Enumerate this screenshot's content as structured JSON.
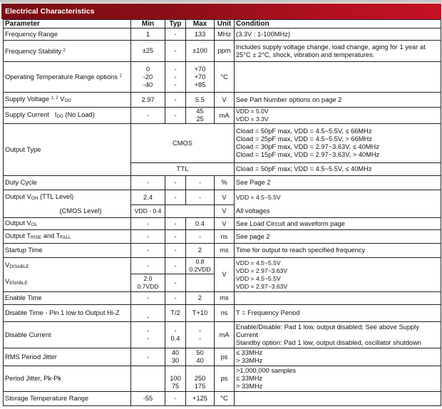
{
  "title": "Electrical Characteristics",
  "headers": {
    "parameter": "Parameter",
    "min": "Min",
    "typ": "Typ",
    "max": "Max",
    "unit": "Unit",
    "condition": "Condition"
  },
  "rows": {
    "freq_range": {
      "param": "Frequency Range",
      "min": "1",
      "typ": "-",
      "max": "133",
      "unit": "MHz",
      "cond": "(3.3V : 1-100MHz)"
    },
    "freq_stab": {
      "param": "Frequency Stability",
      "sup": "2",
      "min": "±25",
      "typ": "-",
      "max": "±100",
      "unit": "ppm",
      "cond": "Includes supply voltage change, load change, aging for 1 year at 25°C ± 2°C, shock, vibration and temperatures."
    },
    "op_temp": {
      "param": "Operating Temperature Range options",
      "sup": "2",
      "min": "0\n-20\n-40",
      "typ": "-\n-\n-",
      "max": "+70\n+70\n+85",
      "unit": "°C",
      "cond": ""
    },
    "supply_v": {
      "param": "Supply Voltage",
      "sup": "1, 2",
      "sym": "V",
      "sub": "DD",
      "min": "2.97",
      "typ": "-",
      "max": "5.5",
      "unit": "V",
      "cond": "See Part Number options on page 2"
    },
    "supply_i": {
      "param": "Supply Current",
      "sym": "I",
      "sub": "DD",
      "extra": "(No Load)",
      "min": "-",
      "typ": "-",
      "max": "45\n25",
      "unit": "mA",
      "cond": "VDD = 5.0V\nVDD = 3.3V"
    },
    "output_type": {
      "param": "Output Type",
      "cmos": "CMOS",
      "cmos_cond": "Cload = 50pF max, VDD = 4.5~5.5V, ≤ 66MHz\nCload = 25pF max, VDD = 4.5~5.5V, > 66MHz\nCload = 30pF max, VDD = 2.97~3.63V, ≤ 40MHz\nCload = 15pF max, VDD = 2.97~3.63V, > 40MHz",
      "ttl": "TTL",
      "ttl_cond": "Cload = 50pF max; VDD = 4.5~5.5V, ≤ 40MHz"
    },
    "duty": {
      "param": "Duty Cycle",
      "min": "-",
      "typ": "-",
      "max": "-",
      "unit": "%",
      "cond": "See Page 2"
    },
    "voh_ttl": {
      "param": "Output V",
      "sub": "OH",
      "extra": "(TTL Level)",
      "min": "2.4",
      "typ": "-",
      "max": "-",
      "unit": "V",
      "cond": "VDD = 4.5~5.5V"
    },
    "voh_cmos": {
      "param": "(CMOS Level)",
      "min": "VDD - 0.4",
      "unit": "V",
      "cond": "All voltages"
    },
    "vol": {
      "param": "Output V",
      "sub": "OL",
      "min": "-",
      "typ": "-",
      "max": "0.4",
      "unit": "V",
      "cond": "See Load Circuit and waveform page"
    },
    "trise": {
      "param": "Output T",
      "sub": "RISE",
      "mid": "and T",
      "sub2": "FALL",
      "min": "-",
      "typ": "-",
      "max": "-",
      "unit": "ns",
      "cond": "See page 2"
    },
    "startup": {
      "param": "Startup Time",
      "min": "-",
      "typ": "-",
      "max": "2",
      "unit": "ms",
      "cond": "Time for output to reach specified frequency"
    },
    "vdisable": {
      "param": "V",
      "sub": "DISABLE",
      "min": "-",
      "typ": "-",
      "max": "0.8\n0.2VDD",
      "unit": "V",
      "cond": "VDD = 4.5~5.5V\nVDD = 2.97~3.63V\nVDD = 4.5~5.5V\nVDD = 2.97~3.63V"
    },
    "venable": {
      "param": "V",
      "sub": "ENABLE",
      "min": "2.0\n0.7VDD",
      "typ": "-",
      "max": ""
    },
    "enable_time": {
      "param": "Enable Time",
      "min": "-",
      "typ": "-",
      "max": "2",
      "unit": "ms",
      "cond": ""
    },
    "disable_time": {
      "param": "Disable Time - Pin 1 low to Output Hi-Z",
      "min": "\n-",
      "typ": "T/2",
      "max": "T+10",
      "unit": "ns",
      "cond": "T = Frequency Period"
    },
    "disable_current": {
      "param": "Disable Current",
      "min": "-\n-",
      "typ": "-\n0.4",
      "max": "-\n-",
      "unit": "mA",
      "cond": "Enable/Disable: Pad 1 low, output disabled; See above Supply Current\nStandby option: Pad 1 low, output disabled, oscillator shutdown"
    },
    "rms_jitter": {
      "param": "RMS Period Jitter",
      "min": "-",
      "typ": "40\n30",
      "max": "50\n40",
      "unit": "ps",
      "cond": "≤ 33MHz\n> 33MHz"
    },
    "pk_jitter": {
      "param": "Period Jitter, Pk-Pk",
      "min": "",
      "typ": "\n100\n75",
      "max": "\n250\n175",
      "unit": "ps",
      "cond": ">1,000,000 samples\n≤ 33MHz\n> 33MHz"
    },
    "storage": {
      "param": "Storage Temperature Range",
      "min": "-55",
      "typ": "-",
      "max": "+125",
      "unit": "°C",
      "cond": ""
    }
  }
}
